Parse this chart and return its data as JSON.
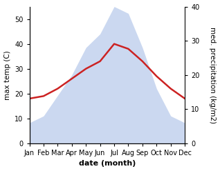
{
  "months": [
    "Jan",
    "Feb",
    "Mar",
    "Apr",
    "May",
    "Jun",
    "Jul",
    "Aug",
    "Sep",
    "Oct",
    "Nov",
    "Dec"
  ],
  "month_indices": [
    1,
    2,
    3,
    4,
    5,
    6,
    7,
    8,
    9,
    10,
    11,
    12
  ],
  "temperature": [
    18,
    19,
    22,
    26,
    30,
    33,
    40,
    38,
    33,
    27,
    22,
    18
  ],
  "precipitation": [
    6,
    8,
    14,
    20,
    28,
    32,
    40,
    38,
    28,
    16,
    8,
    6
  ],
  "temp_ylim": [
    0,
    55
  ],
  "precip_ylim": [
    0,
    40
  ],
  "temp_yticks": [
    0,
    10,
    20,
    30,
    40,
    50
  ],
  "precip_yticks": [
    0,
    10,
    20,
    30,
    40
  ],
  "fill_color": "#afc4e8",
  "fill_alpha": 0.65,
  "line_color": "#cc2222",
  "line_width": 1.8,
  "left_ylabel": "max temp (C)",
  "right_ylabel": "med. precipitation (kg/m2)",
  "xlabel": "date (month)",
  "xlabel_fontsize": 8,
  "ylabel_fontsize": 7.5,
  "tick_fontsize": 7,
  "background_color": "#ffffff"
}
